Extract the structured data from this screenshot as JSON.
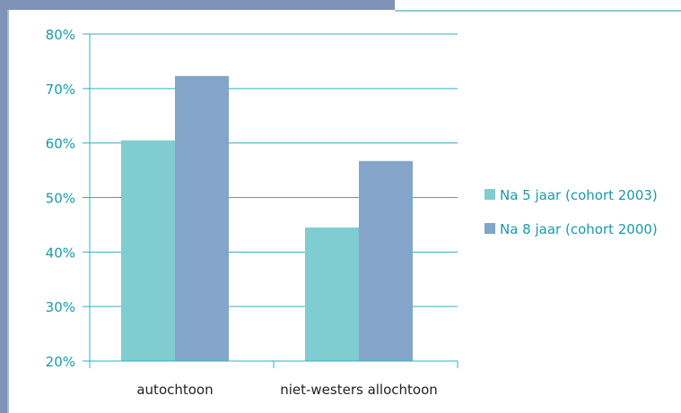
{
  "colors": {
    "series1": "#80cdd1",
    "series2": "#82a5c9",
    "axis": "#2fb1c0",
    "text": "#1a9aa8",
    "frame_dark": "#7f93b8",
    "frame_light": "#8fd0d0"
  },
  "chart_data": {
    "type": "bar",
    "categories": [
      "autochtoon",
      "niet-westers allochtoon"
    ],
    "series": [
      {
        "name": "Na 5 jaar (cohort 2003)",
        "values": [
          60.5,
          44.5
        ]
      },
      {
        "name": "Na 8 jaar (cohort 2000)",
        "values": [
          72.3,
          56.7
        ]
      }
    ],
    "ylim": [
      20,
      80
    ],
    "yticks": [
      "20%",
      "30%",
      "40%",
      "50%",
      "60%",
      "70%",
      "80%"
    ],
    "ytick_values": [
      20,
      30,
      40,
      50,
      60,
      70,
      80
    ],
    "grid": true,
    "legend_position": "right",
    "title": "",
    "xlabel": "",
    "ylabel": ""
  }
}
